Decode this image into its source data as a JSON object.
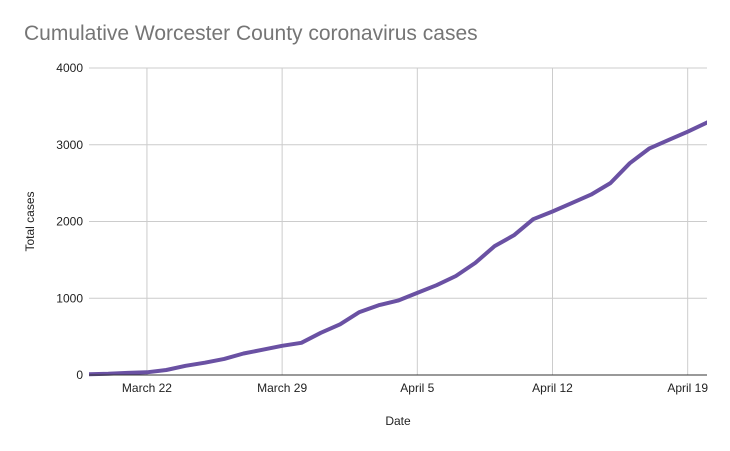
{
  "chart_data": {
    "type": "line",
    "title": "Cumulative Worcester County coronavirus cases",
    "xlabel": "Date",
    "ylabel": "Total cases",
    "ylim": [
      0,
      4000
    ],
    "yticks": [
      "0",
      "1000",
      "2000",
      "3000",
      "4000"
    ],
    "ytick_values": [
      0,
      1000,
      2000,
      3000,
      4000
    ],
    "xlim": [
      "2020-03-19",
      "2020-04-20"
    ],
    "xticks": [
      {
        "label": "March 22",
        "date": "2020-03-22"
      },
      {
        "label": "March 29",
        "date": "2020-03-29"
      },
      {
        "label": "April 5",
        "date": "2020-04-05"
      },
      {
        "label": "April 12",
        "date": "2020-04-12"
      },
      {
        "label": "April 19",
        "date": "2020-04-19"
      }
    ],
    "grid": true,
    "line_color": "#6a51a3",
    "series": [
      {
        "x": [
          "2020-03-19",
          "2020-03-20",
          "2020-03-21",
          "2020-03-22",
          "2020-03-23",
          "2020-03-24",
          "2020-03-25",
          "2020-03-26",
          "2020-03-27",
          "2020-03-28",
          "2020-03-29",
          "2020-03-30",
          "2020-03-31",
          "2020-04-01",
          "2020-04-02",
          "2020-04-03",
          "2020-04-04",
          "2020-04-05",
          "2020-04-06",
          "2020-04-07",
          "2020-04-08",
          "2020-04-09",
          "2020-04-10",
          "2020-04-11",
          "2020-04-12",
          "2020-04-13",
          "2020-04-14",
          "2020-04-15",
          "2020-04-16",
          "2020-04-17",
          "2020-04-18",
          "2020-04-19",
          "2020-04-20"
        ],
        "values": [
          10,
          15,
          28,
          35,
          65,
          120,
          160,
          210,
          280,
          330,
          380,
          420,
          550,
          660,
          820,
          910,
          970,
          1070,
          1170,
          1290,
          1460,
          1680,
          1820,
          2030,
          2130,
          2240,
          2350,
          2500,
          2760,
          2950,
          3060,
          3170,
          3290
        ]
      }
    ]
  }
}
